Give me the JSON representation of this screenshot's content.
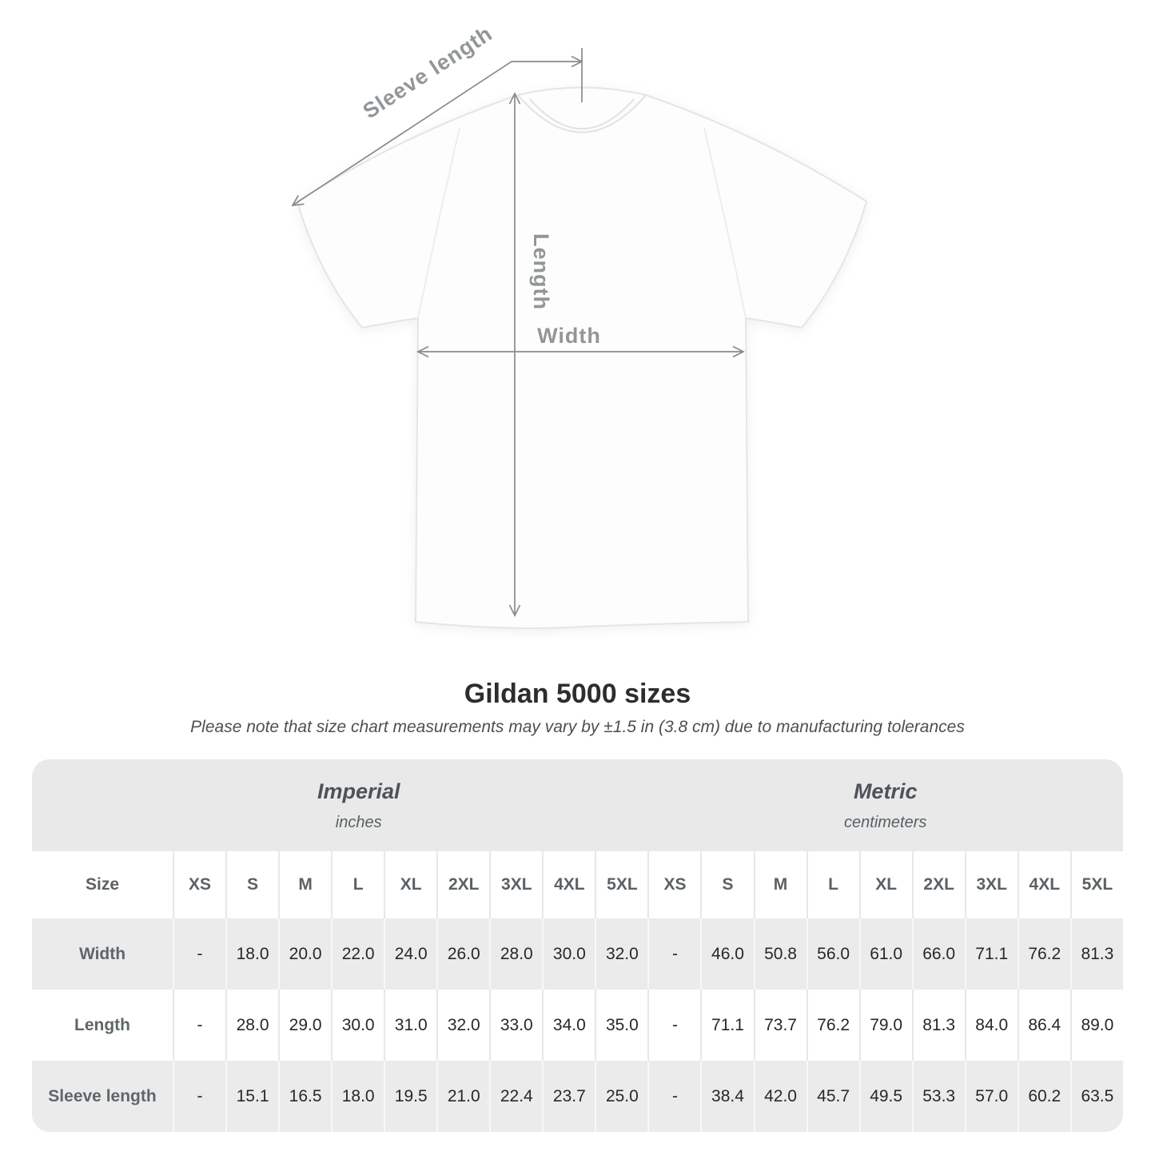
{
  "diagram": {
    "sleeve_label": "Sleeve length",
    "length_label": "Length",
    "width_label": "Width"
  },
  "title": "Gildan 5000 sizes",
  "subtitle": "Please note that size chart measurements may vary by ±1.5 in (3.8 cm) due to manufacturing tolerances",
  "table": {
    "sections": [
      {
        "name": "Imperial",
        "unit": "inches"
      },
      {
        "name": "Metric",
        "unit": "centimeters"
      }
    ],
    "size_label": "Size",
    "header_sizes": [
      "XS",
      "S",
      "M",
      "L",
      "XL",
      "2XL",
      "3XL",
      "4XL",
      "5XL",
      "XS",
      "S",
      "M",
      "L",
      "XL",
      "2XL",
      "3XL",
      "4XL",
      "5XL"
    ],
    "rows": [
      {
        "label": "Width",
        "values": [
          "-",
          "18.0",
          "20.0",
          "22.0",
          "24.0",
          "26.0",
          "28.0",
          "30.0",
          "32.0",
          "-",
          "46.0",
          "50.8",
          "56.0",
          "61.0",
          "66.0",
          "71.1",
          "76.2",
          "81.3"
        ]
      },
      {
        "label": "Length",
        "values": [
          "-",
          "28.0",
          "29.0",
          "30.0",
          "31.0",
          "32.0",
          "33.0",
          "34.0",
          "35.0",
          "-",
          "71.1",
          "73.7",
          "76.2",
          "79.0",
          "81.3",
          "84.0",
          "86.4",
          "89.0"
        ]
      },
      {
        "label": "Sleeve length",
        "values": [
          "-",
          "15.1",
          "16.5",
          "18.0",
          "19.5",
          "21.0",
          "22.4",
          "23.7",
          "25.0",
          "-",
          "38.4",
          "42.0",
          "45.7",
          "49.5",
          "53.3",
          "57.0",
          "60.2",
          "63.5"
        ]
      }
    ]
  },
  "colors": {
    "band_bg": "#e9e9e9",
    "row_alt_bg": "#ebebeb",
    "header_text": "#5b6164",
    "value_text": "#26282a",
    "row_label_text": "#5f6669",
    "dimension_line": "#8a8a8a",
    "diagram_label": "#929699",
    "title_text": "#2d2d2d",
    "subtitle_text": "#4f4f4f"
  }
}
